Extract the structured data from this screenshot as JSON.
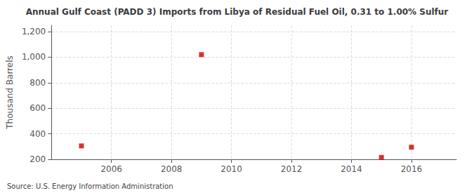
{
  "chart_data": {
    "type": "scatter",
    "title": "Annual Gulf Coast (PADD 3) Imports from Libya of Residual Fuel Oil, 0.31 to 1.00% Sulfur",
    "ylabel": "Thousand Barrels",
    "annotation": "Source: U.S. Energy Information Administration",
    "x": [
      2005,
      2009,
      2015,
      2016
    ],
    "values": [
      305,
      1020,
      215,
      295
    ],
    "color": "#cc0000",
    "marker": "square",
    "xlim": [
      2004.0,
      2017.5
    ],
    "ylim": [
      200,
      1250
    ],
    "xticks": [
      2006,
      2008,
      2010,
      2012,
      2014,
      2016
    ],
    "yticks": [
      200,
      400,
      600,
      800,
      {
        "value": 1000,
        "label": "1,000"
      },
      {
        "value": 1200,
        "label": "1,200"
      }
    ],
    "grid": true
  }
}
